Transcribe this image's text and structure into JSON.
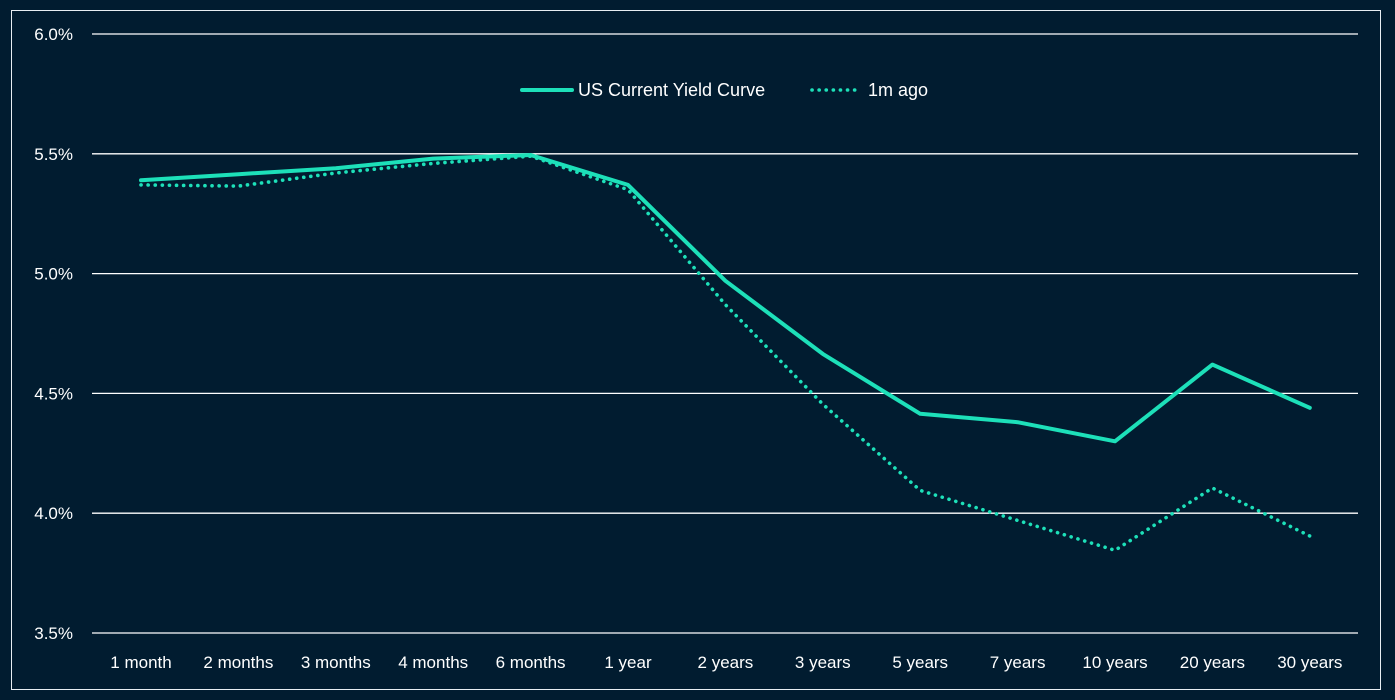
{
  "chart_data": {
    "type": "line",
    "categories": [
      "1 month",
      "2 months",
      "3 months",
      "4 months",
      "6 months",
      "1 year",
      "2 years",
      "3 years",
      "5 years",
      "7 years",
      "10 years",
      "20 years",
      "30 years"
    ],
    "series": [
      {
        "name": "US Current Yield Curve",
        "values": [
          5.39,
          5.415,
          5.44,
          5.48,
          5.495,
          5.37,
          4.97,
          4.665,
          4.415,
          4.38,
          4.3,
          4.62,
          4.44
        ],
        "color": "#1de0b9",
        "style": "solid"
      },
      {
        "name": "1m ago",
        "values": [
          5.37,
          5.365,
          5.42,
          5.46,
          5.49,
          5.35,
          4.87,
          4.455,
          4.095,
          3.97,
          3.845,
          4.105,
          3.905
        ],
        "color": "#1de0b9",
        "style": "dotted"
      }
    ],
    "y_ticks": [
      "6.0%",
      "5.5%",
      "5.0%",
      "4.5%",
      "4.0%",
      "3.5%"
    ],
    "ylim": [
      3.5,
      6.0
    ],
    "grid": true,
    "legend_position": "top-center",
    "background": "#011c30"
  }
}
